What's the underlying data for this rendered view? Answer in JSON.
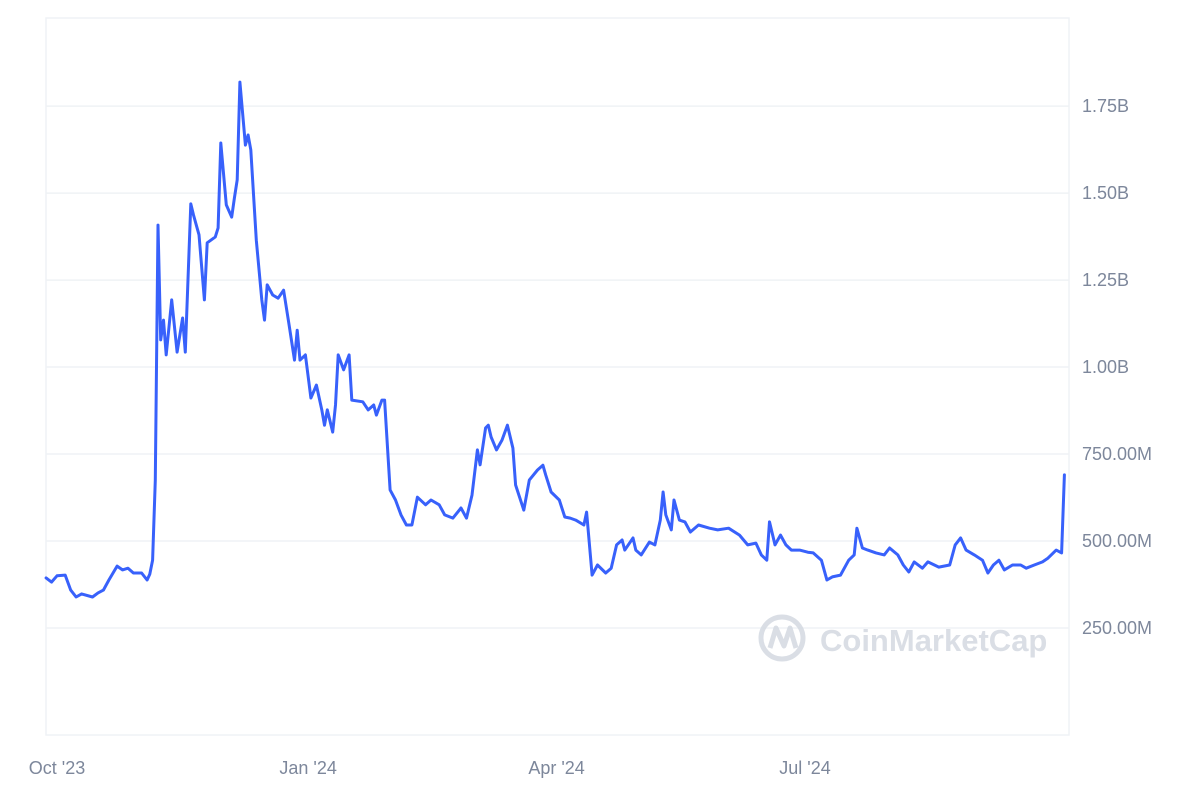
{
  "chart_data": {
    "type": "line",
    "title": "",
    "xlabel": "",
    "ylabel": "",
    "line_color": "#3861fb",
    "grid": true,
    "watermark": "CoinMarketCap",
    "x_ticks": [
      {
        "date": "2023-10-01",
        "label": "Oct '23"
      },
      {
        "date": "2024-01-01",
        "label": "Jan '24"
      },
      {
        "date": "2024-04-01",
        "label": "Apr '24"
      },
      {
        "date": "2024-07-01",
        "label": "Jul '24"
      }
    ],
    "y_ticks": [
      {
        "value": 250000000.0,
        "label": "250.00M"
      },
      {
        "value": 500000000.0,
        "label": "500.00M"
      },
      {
        "value": 750000000.0,
        "label": "750.00M"
      },
      {
        "value": 1000000000.0,
        "label": "1.00B"
      },
      {
        "value": 1250000000.0,
        "label": "1.25B"
      },
      {
        "value": 1500000000.0,
        "label": "1.50B"
      },
      {
        "value": 1750000000.0,
        "label": "1.75B"
      }
    ],
    "xlim": [
      "2023-09-27",
      "2024-10-04"
    ],
    "ylim": [
      0,
      2000000000.0
    ],
    "series": [
      {
        "points": [
          [
            "2023-09-27",
            394000000.0
          ],
          [
            "2023-09-29",
            382000000.0
          ],
          [
            "2023-10-01",
            400000000.0
          ],
          [
            "2023-10-04",
            402000000.0
          ],
          [
            "2023-10-06",
            359000000.0
          ],
          [
            "2023-10-08",
            339000000.0
          ],
          [
            "2023-10-10",
            348000000.0
          ],
          [
            "2023-10-14",
            339000000.0
          ],
          [
            "2023-10-16",
            351000000.0
          ],
          [
            "2023-10-18",
            359000000.0
          ],
          [
            "2023-10-20",
            388000000.0
          ],
          [
            "2023-10-23",
            428000000.0
          ],
          [
            "2023-10-25",
            417000000.0
          ],
          [
            "2023-10-27",
            422000000.0
          ],
          [
            "2023-10-29",
            408000000.0
          ],
          [
            "2023-11-01",
            408000000.0
          ],
          [
            "2023-11-03",
            388000000.0
          ],
          [
            "2023-11-04",
            405000000.0
          ],
          [
            "2023-11-05",
            445000000.0
          ],
          [
            "2023-11-06",
            675000000.0
          ],
          [
            "2023-11-07",
            1408000000.0
          ],
          [
            "2023-11-08",
            1078000000.0
          ],
          [
            "2023-11-09",
            1135000000.0
          ],
          [
            "2023-11-10",
            1035000000.0
          ],
          [
            "2023-11-12",
            1193000000.0
          ],
          [
            "2023-11-14",
            1043000000.0
          ],
          [
            "2023-11-16",
            1141000000.0
          ],
          [
            "2023-11-17",
            1043000000.0
          ],
          [
            "2023-11-19",
            1469000000.0
          ],
          [
            "2023-11-20",
            1437000000.0
          ],
          [
            "2023-11-22",
            1380000000.0
          ],
          [
            "2023-11-24",
            1193000000.0
          ],
          [
            "2023-11-25",
            1357000000.0
          ],
          [
            "2023-11-28",
            1374000000.0
          ],
          [
            "2023-11-29",
            1400000000.0
          ],
          [
            "2023-11-30",
            1644000000.0
          ],
          [
            "2023-12-02",
            1466000000.0
          ],
          [
            "2023-12-04",
            1431000000.0
          ],
          [
            "2023-12-05",
            1486000000.0
          ],
          [
            "2023-12-06",
            1538000000.0
          ],
          [
            "2023-12-07",
            1819000000.0
          ],
          [
            "2023-12-09",
            1638000000.0
          ],
          [
            "2023-12-10",
            1667000000.0
          ],
          [
            "2023-12-11",
            1624000000.0
          ],
          [
            "2023-12-13",
            1365000000.0
          ],
          [
            "2023-12-15",
            1193000000.0
          ],
          [
            "2023-12-16",
            1135000000.0
          ],
          [
            "2023-12-17",
            1236000000.0
          ],
          [
            "2023-12-19",
            1207000000.0
          ],
          [
            "2023-12-21",
            1198000000.0
          ],
          [
            "2023-12-23",
            1221000000.0
          ],
          [
            "2023-12-25",
            1121000000.0
          ],
          [
            "2023-12-27",
            1020000000.0
          ],
          [
            "2023-12-28",
            1106000000.0
          ],
          [
            "2023-12-29",
            1020000000.0
          ],
          [
            "2023-12-31",
            1035000000.0
          ],
          [
            "2024-01-02",
            911000000.0
          ],
          [
            "2024-01-04",
            948000000.0
          ],
          [
            "2024-01-06",
            877000000.0
          ],
          [
            "2024-01-07",
            833000000.0
          ],
          [
            "2024-01-08",
            877000000.0
          ],
          [
            "2024-01-10",
            813000000.0
          ],
          [
            "2024-01-11",
            891000000.0
          ],
          [
            "2024-01-12",
            1035000000.0
          ],
          [
            "2024-01-14",
            992000000.0
          ],
          [
            "2024-01-16",
            1035000000.0
          ],
          [
            "2024-01-17",
            905000000.0
          ],
          [
            "2024-01-21",
            900000000.0
          ],
          [
            "2024-01-23",
            877000000.0
          ],
          [
            "2024-01-25",
            891000000.0
          ],
          [
            "2024-01-26",
            862000000.0
          ],
          [
            "2024-01-28",
            905000000.0
          ],
          [
            "2024-01-29",
            905000000.0
          ],
          [
            "2024-01-31",
            647000000.0
          ],
          [
            "2024-02-02",
            618000000.0
          ],
          [
            "2024-02-04",
            575000000.0
          ],
          [
            "2024-02-06",
            546000000.0
          ],
          [
            "2024-02-08",
            546000000.0
          ],
          [
            "2024-02-10",
            626000000.0
          ],
          [
            "2024-02-13",
            604000000.0
          ],
          [
            "2024-02-15",
            618000000.0
          ],
          [
            "2024-02-18",
            604000000.0
          ],
          [
            "2024-02-20",
            575000000.0
          ],
          [
            "2024-02-23",
            566000000.0
          ],
          [
            "2024-02-26",
            595000000.0
          ],
          [
            "2024-02-28",
            566000000.0
          ],
          [
            "2024-03-01",
            632000000.0
          ],
          [
            "2024-03-03",
            762000000.0
          ],
          [
            "2024-03-04",
            719000000.0
          ],
          [
            "2024-03-06",
            825000000.0
          ],
          [
            "2024-03-07",
            833000000.0
          ],
          [
            "2024-03-08",
            799000000.0
          ],
          [
            "2024-03-10",
            762000000.0
          ],
          [
            "2024-03-12",
            790000000.0
          ],
          [
            "2024-03-14",
            833000000.0
          ],
          [
            "2024-03-16",
            767000000.0
          ],
          [
            "2024-03-17",
            661000000.0
          ],
          [
            "2024-03-20",
            589000000.0
          ],
          [
            "2024-03-22",
            675000000.0
          ],
          [
            "2024-03-25",
            704000000.0
          ],
          [
            "2024-03-27",
            718000000.0
          ],
          [
            "2024-03-28",
            690000000.0
          ],
          [
            "2024-03-30",
            641000000.0
          ],
          [
            "2024-04-02",
            618000000.0
          ],
          [
            "2024-04-04",
            569000000.0
          ],
          [
            "2024-04-06",
            566000000.0
          ],
          [
            "2024-04-08",
            560000000.0
          ],
          [
            "2024-04-11",
            546000000.0
          ],
          [
            "2024-04-12",
            583000000.0
          ],
          [
            "2024-04-14",
            402000000.0
          ],
          [
            "2024-04-16",
            431000000.0
          ],
          [
            "2024-04-19",
            408000000.0
          ],
          [
            "2024-04-21",
            422000000.0
          ],
          [
            "2024-04-23",
            489000000.0
          ],
          [
            "2024-04-25",
            503000000.0
          ],
          [
            "2024-04-26",
            474000000.0
          ],
          [
            "2024-04-29",
            509000000.0
          ],
          [
            "2024-04-30",
            474000000.0
          ],
          [
            "2024-05-02",
            460000000.0
          ],
          [
            "2024-05-05",
            497000000.0
          ],
          [
            "2024-05-07",
            489000000.0
          ],
          [
            "2024-05-09",
            560000000.0
          ],
          [
            "2024-05-10",
            641000000.0
          ],
          [
            "2024-05-11",
            575000000.0
          ],
          [
            "2024-05-13",
            532000000.0
          ],
          [
            "2024-05-14",
            618000000.0
          ],
          [
            "2024-05-16",
            560000000.0
          ],
          [
            "2024-05-18",
            555000000.0
          ],
          [
            "2024-05-20",
            526000000.0
          ],
          [
            "2024-05-23",
            546000000.0
          ],
          [
            "2024-05-27",
            537000000.0
          ],
          [
            "2024-05-30",
            532000000.0
          ],
          [
            "2024-06-03",
            537000000.0
          ],
          [
            "2024-06-07",
            517000000.0
          ],
          [
            "2024-06-10",
            489000000.0
          ],
          [
            "2024-06-13",
            494000000.0
          ],
          [
            "2024-06-15",
            460000000.0
          ],
          [
            "2024-06-17",
            445000000.0
          ],
          [
            "2024-06-18",
            555000000.0
          ],
          [
            "2024-06-20",
            489000000.0
          ],
          [
            "2024-06-22",
            517000000.0
          ],
          [
            "2024-06-24",
            489000000.0
          ],
          [
            "2024-06-26",
            474000000.0
          ],
          [
            "2024-06-29",
            474000000.0
          ],
          [
            "2024-07-02",
            468000000.0
          ],
          [
            "2024-07-04",
            466000000.0
          ],
          [
            "2024-07-07",
            445000000.0
          ],
          [
            "2024-07-09",
            388000000.0
          ],
          [
            "2024-07-11",
            397000000.0
          ],
          [
            "2024-07-14",
            402000000.0
          ],
          [
            "2024-07-17",
            445000000.0
          ],
          [
            "2024-07-19",
            460000000.0
          ],
          [
            "2024-07-20",
            537000000.0
          ],
          [
            "2024-07-22",
            480000000.0
          ],
          [
            "2024-07-24",
            474000000.0
          ],
          [
            "2024-07-27",
            466000000.0
          ],
          [
            "2024-07-30",
            460000000.0
          ],
          [
            "2024-08-01",
            480000000.0
          ],
          [
            "2024-08-04",
            460000000.0
          ],
          [
            "2024-08-06",
            431000000.0
          ],
          [
            "2024-08-08",
            411000000.0
          ],
          [
            "2024-08-10",
            440000000.0
          ],
          [
            "2024-08-13",
            422000000.0
          ],
          [
            "2024-08-15",
            440000000.0
          ],
          [
            "2024-08-19",
            425000000.0
          ],
          [
            "2024-08-23",
            431000000.0
          ],
          [
            "2024-08-25",
            489000000.0
          ],
          [
            "2024-08-27",
            509000000.0
          ],
          [
            "2024-08-29",
            474000000.0
          ],
          [
            "2024-09-01",
            460000000.0
          ],
          [
            "2024-09-04",
            445000000.0
          ],
          [
            "2024-09-06",
            408000000.0
          ],
          [
            "2024-09-08",
            431000000.0
          ],
          [
            "2024-09-10",
            445000000.0
          ],
          [
            "2024-09-12",
            417000000.0
          ],
          [
            "2024-09-15",
            431000000.0
          ],
          [
            "2024-09-18",
            431000000.0
          ],
          [
            "2024-09-20",
            422000000.0
          ],
          [
            "2024-09-23",
            431000000.0
          ],
          [
            "2024-09-26",
            440000000.0
          ],
          [
            "2024-09-28",
            451000000.0
          ],
          [
            "2024-10-01",
            474000000.0
          ],
          [
            "2024-10-03",
            466000000.0
          ],
          [
            "2024-10-04",
            690000000.0
          ]
        ]
      }
    ]
  }
}
